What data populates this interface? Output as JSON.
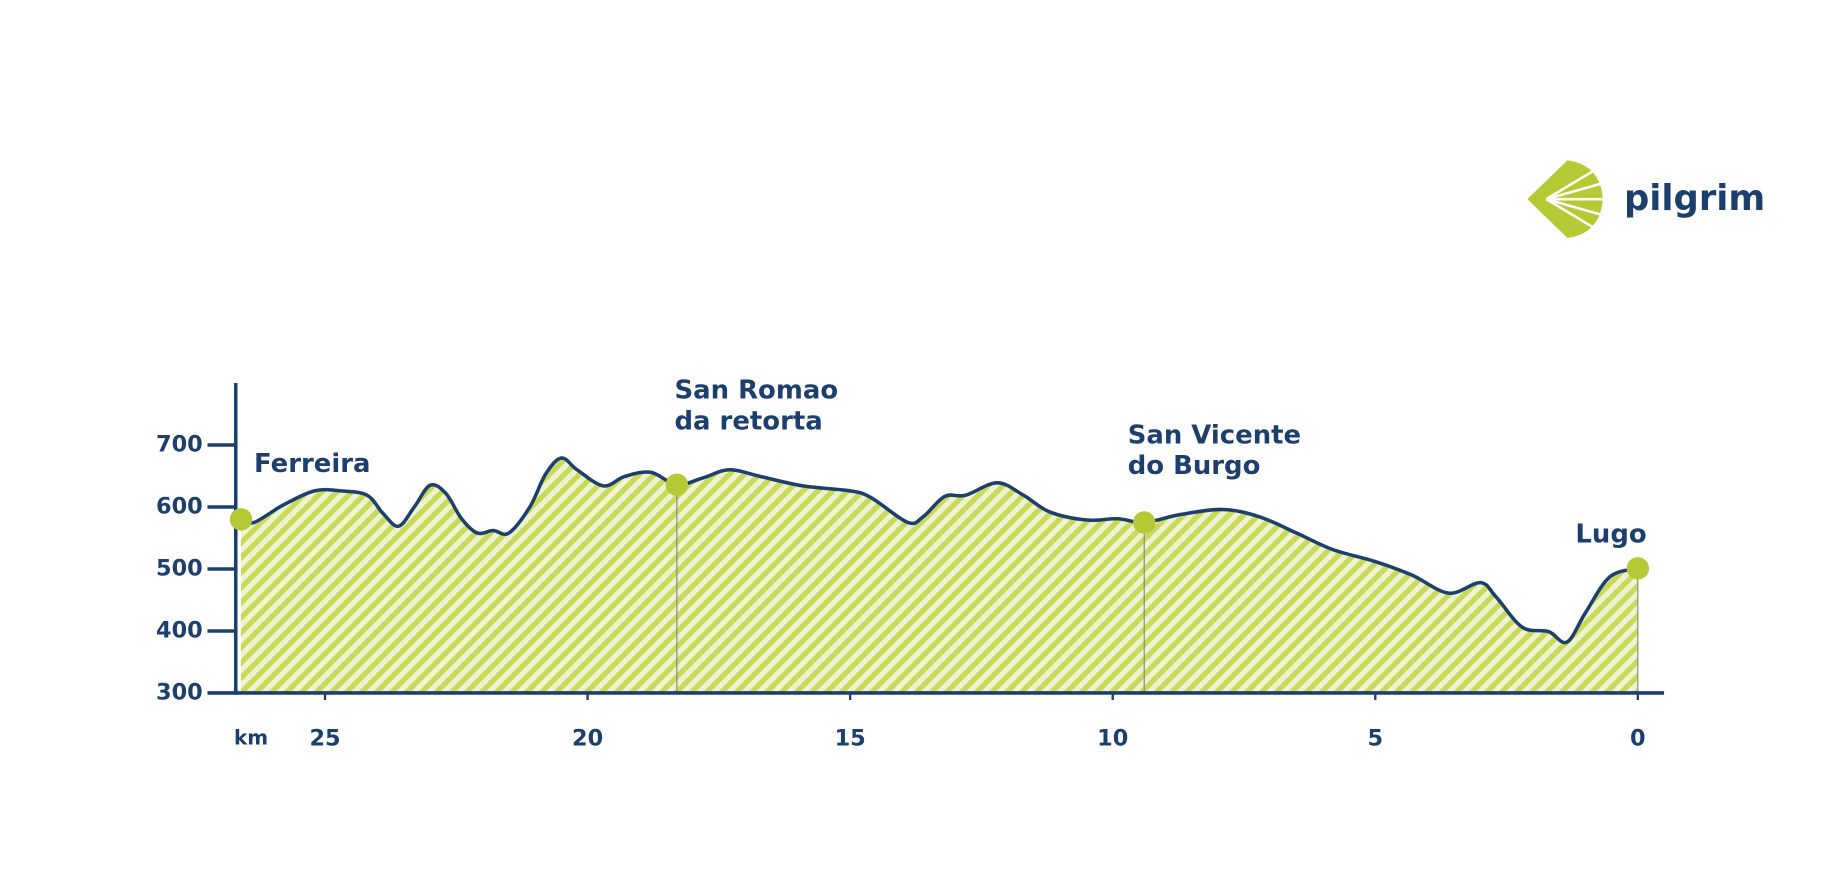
{
  "chart_data": {
    "type": "area",
    "brand": "pilgrim",
    "xlabel": "km",
    "x": [
      26.6,
      26.35,
      25.8,
      25.2,
      24.7,
      24.2,
      23.9,
      23.6,
      23.3,
      23.0,
      22.7,
      22.4,
      22.1,
      21.8,
      21.5,
      21.1,
      20.8,
      20.5,
      20.2,
      19.7,
      19.3,
      18.8,
      18.3,
      17.8,
      17.3,
      16.7,
      15.9,
      15.0,
      14.6,
      13.9,
      13.6,
      13.2,
      12.8,
      12.2,
      11.7,
      11.2,
      10.5,
      9.9,
      9.4,
      8.7,
      7.9,
      7.2,
      6.5,
      5.8,
      5.0,
      4.3,
      3.6,
      3.0,
      2.7,
      2.2,
      1.7,
      1.35,
      1.0,
      0.55,
      0.05,
      0
    ],
    "values": [
      580,
      575,
      603,
      626,
      626,
      619,
      590,
      569,
      600,
      635,
      622,
      581,
      558,
      562,
      558,
      600,
      653,
      679,
      660,
      634,
      649,
      656,
      636,
      647,
      660,
      649,
      634,
      626,
      615,
      575,
      585,
      617,
      619,
      639,
      619,
      592,
      579,
      581,
      575,
      588,
      596,
      584,
      558,
      531,
      512,
      490,
      461,
      478,
      455,
      406,
      399,
      382,
      429,
      486,
      501,
      501
    ],
    "color": "#1d3f6e",
    "fill_color": "#c9d95a",
    "marker_color": "#b5c935",
    "markers": [
      {
        "label": [
          "Ferreira"
        ],
        "x": 26.6,
        "value": 580
      },
      {
        "label": [
          "San Romao",
          "da retorta"
        ],
        "x": 18.3,
        "value": 636
      },
      {
        "label": [
          "San Vicente",
          "do Burgo"
        ],
        "x": 9.4,
        "value": 575
      },
      {
        "label": [
          "Lugo"
        ],
        "x": 0,
        "value": 501
      }
    ],
    "xlim": [
      26.7,
      -0.5
    ],
    "ylim": [
      300,
      800
    ],
    "xticks": [
      25,
      20,
      15,
      10,
      5,
      0
    ],
    "yticks": [
      300,
      400,
      500,
      600,
      700
    ]
  }
}
